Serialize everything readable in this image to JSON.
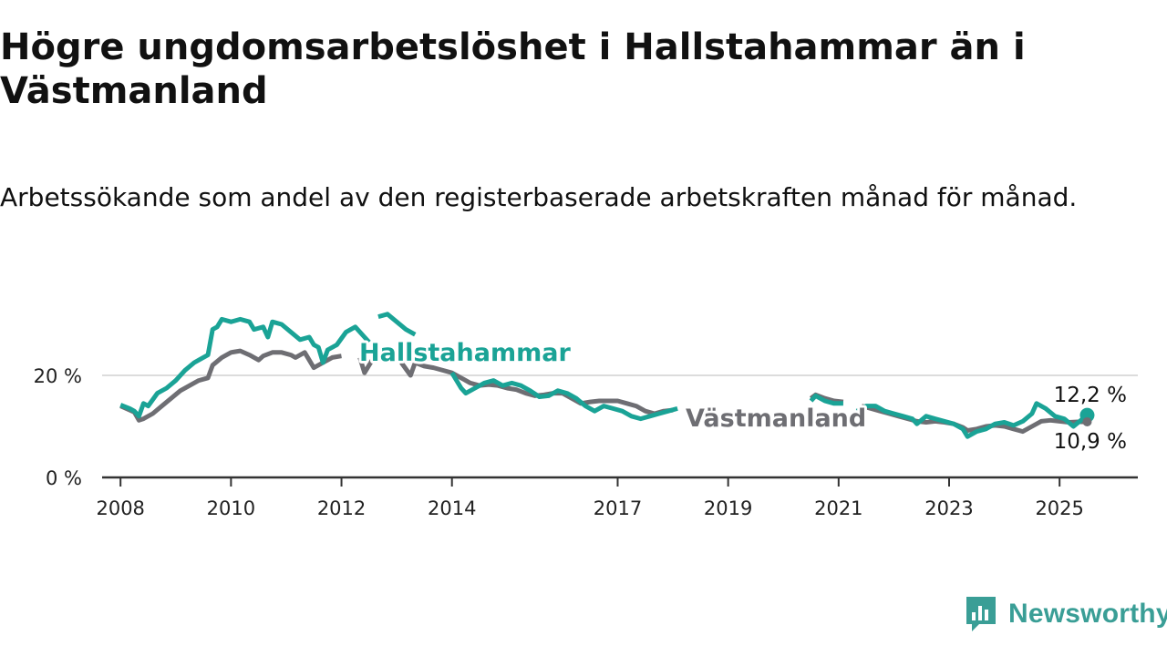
{
  "title": "Högre ungdomsarbetslöshet i Hallstahammar än i Västmanland",
  "subtitle": "Arbetssökande som andel av den registerbaserade arbetskraften månad för månad.",
  "brand": {
    "name": "Newsworthy",
    "icon": "bar-chart-logo-icon",
    "color": "#3a9e96"
  },
  "chart_data": {
    "type": "line",
    "x_type": "date",
    "xlim": [
      "2007-09",
      "2026-06"
    ],
    "ylim": [
      0,
      40
    ],
    "y_ticks": [
      {
        "value": 0,
        "label": "0 %"
      },
      {
        "value": 20,
        "label": "20 %"
      }
    ],
    "x_ticks": [
      {
        "value": "2008-01",
        "label": "2008"
      },
      {
        "value": "2010-01",
        "label": "2010"
      },
      {
        "value": "2012-01",
        "label": "2012"
      },
      {
        "value": "2014-01",
        "label": "2014"
      },
      {
        "value": "2017-01",
        "label": "2017"
      },
      {
        "value": "2019-01",
        "label": "2019"
      },
      {
        "value": "2021-01",
        "label": "2021"
      },
      {
        "value": "2023-01",
        "label": "2023"
      },
      {
        "value": "2025-01",
        "label": "2025"
      }
    ],
    "grid": "horizontal",
    "series": [
      {
        "name": "Västmanland",
        "color": "#6e6e73",
        "end_label": "10,9 %",
        "segments": [
          [
            [
              "2008-01",
              14.0
            ],
            [
              "2008-03",
              13.2
            ],
            [
              "2008-04",
              12.8
            ],
            [
              "2008-05",
              11.2
            ],
            [
              "2008-06",
              11.5
            ],
            [
              "2008-08",
              12.5
            ],
            [
              "2008-10",
              14.0
            ],
            [
              "2008-12",
              15.5
            ],
            [
              "2009-02",
              17.0
            ],
            [
              "2009-04",
              18.0
            ],
            [
              "2009-06",
              19.0
            ],
            [
              "2009-08",
              19.5
            ],
            [
              "2009-09",
              22.0
            ],
            [
              "2009-11",
              23.5
            ],
            [
              "2010-01",
              24.5
            ],
            [
              "2010-03",
              24.8
            ],
            [
              "2010-05",
              24.0
            ],
            [
              "2010-07",
              23.0
            ],
            [
              "2010-08",
              23.8
            ],
            [
              "2010-10",
              24.5
            ],
            [
              "2010-12",
              24.5
            ],
            [
              "2011-02",
              24.0
            ],
            [
              "2011-03",
              23.5
            ],
            [
              "2011-05",
              24.5
            ],
            [
              "2011-06",
              23.0
            ],
            [
              "2011-07",
              21.5
            ],
            [
              "2011-09",
              22.5
            ],
            [
              "2011-11",
              23.5
            ],
            [
              "2012-01",
              23.8
            ]
          ],
          [
            [
              "2012-05",
              23.5
            ],
            [
              "2012-06",
              20.5
            ],
            [
              "2012-08",
              23.5
            ]
          ],
          [
            [
              "2013-02",
              22.5
            ],
            [
              "2013-04",
              20.0
            ],
            [
              "2013-05",
              22.5
            ],
            [
              "2013-07",
              21.8
            ],
            [
              "2013-09",
              21.5
            ],
            [
              "2013-11",
              21.0
            ],
            [
              "2014-01",
              20.5
            ],
            [
              "2014-03",
              19.5
            ],
            [
              "2014-05",
              18.5
            ],
            [
              "2014-07",
              18.0
            ],
            [
              "2014-09",
              18.2
            ],
            [
              "2014-11",
              18.0
            ],
            [
              "2015-01",
              17.5
            ],
            [
              "2015-03",
              17.2
            ],
            [
              "2015-05",
              16.5
            ],
            [
              "2015-07",
              16.0
            ],
            [
              "2015-09",
              16.2
            ],
            [
              "2015-11",
              16.5
            ],
            [
              "2016-01",
              16.5
            ],
            [
              "2016-03",
              15.5
            ],
            [
              "2016-05",
              14.5
            ],
            [
              "2016-07",
              14.8
            ],
            [
              "2016-09",
              15.0
            ],
            [
              "2016-11",
              15.0
            ],
            [
              "2017-01",
              15.0
            ],
            [
              "2017-03",
              14.5
            ],
            [
              "2017-05",
              14.0
            ],
            [
              "2017-07",
              13.0
            ],
            [
              "2017-09",
              12.5
            ],
            [
              "2017-11",
              13.0
            ],
            [
              "2018-01",
              13.2
            ]
          ],
          [
            [
              "2020-07",
              15.5
            ],
            [
              "2020-08",
              16.2
            ],
            [
              "2020-10",
              15.5
            ],
            [
              "2020-12",
              15.0
            ],
            [
              "2021-02",
              14.8
            ]
          ],
          [
            [
              "2021-06",
              14.0
            ],
            [
              "2021-08",
              13.5
            ],
            [
              "2021-10",
              13.0
            ],
            [
              "2021-12",
              12.5
            ],
            [
              "2022-02",
              12.0
            ],
            [
              "2022-04",
              11.5
            ],
            [
              "2022-06",
              11.0
            ],
            [
              "2022-08",
              10.8
            ],
            [
              "2022-10",
              11.0
            ],
            [
              "2022-12",
              10.8
            ],
            [
              "2023-02",
              10.5
            ],
            [
              "2023-04",
              9.8
            ],
            [
              "2023-05",
              9.2
            ],
            [
              "2023-07",
              9.5
            ],
            [
              "2023-09",
              10.0
            ],
            [
              "2023-11",
              10.2
            ],
            [
              "2024-01",
              10.0
            ],
            [
              "2024-03",
              9.5
            ],
            [
              "2024-05",
              9.0
            ],
            [
              "2024-07",
              10.0
            ],
            [
              "2024-09",
              11.0
            ],
            [
              "2024-11",
              11.2
            ],
            [
              "2025-01",
              11.0
            ],
            [
              "2025-03",
              10.8
            ],
            [
              "2025-05",
              10.9
            ],
            [
              "2025-07",
              10.9
            ]
          ]
        ]
      },
      {
        "name": "Hallstahammar",
        "color": "#1aa396",
        "end_label": "12,2 %",
        "segments": [
          [
            [
              "2008-01",
              14.2
            ],
            [
              "2008-03",
              13.5
            ],
            [
              "2008-04",
              13.0
            ],
            [
              "2008-05",
              12.0
            ],
            [
              "2008-06",
              14.5
            ],
            [
              "2008-07",
              14.0
            ],
            [
              "2008-09",
              16.5
            ],
            [
              "2008-11",
              17.5
            ],
            [
              "2009-01",
              19.0
            ],
            [
              "2009-03",
              21.0
            ],
            [
              "2009-05",
              22.5
            ],
            [
              "2009-06",
              23.0
            ],
            [
              "2009-08",
              24.0
            ],
            [
              "2009-09",
              29.0
            ],
            [
              "2009-10",
              29.5
            ],
            [
              "2009-11",
              31.0
            ],
            [
              "2010-01",
              30.5
            ],
            [
              "2010-03",
              31.0
            ],
            [
              "2010-05",
              30.5
            ],
            [
              "2010-06",
              29.0
            ],
            [
              "2010-08",
              29.5
            ],
            [
              "2010-09",
              27.5
            ],
            [
              "2010-10",
              30.5
            ],
            [
              "2010-12",
              30.0
            ],
            [
              "2011-02",
              28.5
            ],
            [
              "2011-04",
              27.0
            ],
            [
              "2011-06",
              27.5
            ],
            [
              "2011-07",
              26.0
            ],
            [
              "2011-08",
              25.5
            ],
            [
              "2011-09",
              22.5
            ],
            [
              "2011-10",
              25.0
            ],
            [
              "2011-12",
              26.0
            ],
            [
              "2012-02",
              28.5
            ],
            [
              "2012-04",
              29.5
            ],
            [
              "2012-06",
              27.5
            ],
            [
              "2012-07",
              26.5
            ]
          ],
          [
            [
              "2012-09",
              31.5
            ],
            [
              "2012-11",
              32.0
            ],
            [
              "2013-01",
              30.5
            ],
            [
              "2013-03",
              29.0
            ],
            [
              "2013-05",
              28.0
            ]
          ],
          [
            [
              "2014-01",
              20.5
            ],
            [
              "2014-03",
              17.5
            ],
            [
              "2014-04",
              16.5
            ],
            [
              "2014-06",
              17.5
            ],
            [
              "2014-08",
              18.5
            ],
            [
              "2014-10",
              19.0
            ],
            [
              "2014-12",
              18.0
            ],
            [
              "2015-02",
              18.5
            ],
            [
              "2015-04",
              18.0
            ],
            [
              "2015-06",
              17.0
            ],
            [
              "2015-08",
              15.8
            ],
            [
              "2015-10",
              16.0
            ],
            [
              "2015-12",
              17.0
            ],
            [
              "2016-02",
              16.5
            ],
            [
              "2016-04",
              15.5
            ],
            [
              "2016-06",
              14.0
            ],
            [
              "2016-08",
              13.0
            ],
            [
              "2016-10",
              14.0
            ],
            [
              "2016-12",
              13.5
            ],
            [
              "2017-02",
              13.0
            ],
            [
              "2017-04",
              12.0
            ],
            [
              "2017-06",
              11.5
            ],
            [
              "2017-08",
              12.0
            ],
            [
              "2017-10",
              12.5
            ],
            [
              "2017-12",
              13.0
            ],
            [
              "2018-02",
              13.5
            ]
          ],
          [
            [
              "2020-07",
              15.0
            ],
            [
              "2020-08",
              16.0
            ],
            [
              "2020-10",
              15.0
            ],
            [
              "2020-12",
              14.5
            ],
            [
              "2021-02",
              14.5
            ]
          ],
          [
            [
              "2021-05",
              13.0
            ],
            [
              "2021-07",
              14.0
            ],
            [
              "2021-09",
              14.0
            ],
            [
              "2021-11",
              13.0
            ],
            [
              "2022-01",
              12.5
            ],
            [
              "2022-03",
              12.0
            ],
            [
              "2022-05",
              11.5
            ],
            [
              "2022-06",
              10.5
            ],
            [
              "2022-08",
              12.0
            ],
            [
              "2022-10",
              11.5
            ],
            [
              "2022-12",
              11.0
            ],
            [
              "2023-02",
              10.5
            ],
            [
              "2023-04",
              9.5
            ],
            [
              "2023-05",
              8.0
            ],
            [
              "2023-07",
              9.0
            ],
            [
              "2023-09",
              9.5
            ],
            [
              "2023-11",
              10.5
            ],
            [
              "2024-01",
              10.8
            ],
            [
              "2024-03",
              10.2
            ],
            [
              "2024-05",
              11.0
            ],
            [
              "2024-07",
              12.5
            ],
            [
              "2024-08",
              14.5
            ],
            [
              "2024-10",
              13.5
            ],
            [
              "2024-12",
              12.0
            ],
            [
              "2025-02",
              11.5
            ],
            [
              "2025-04",
              10.0
            ],
            [
              "2025-07",
              12.2
            ]
          ]
        ]
      }
    ]
  }
}
